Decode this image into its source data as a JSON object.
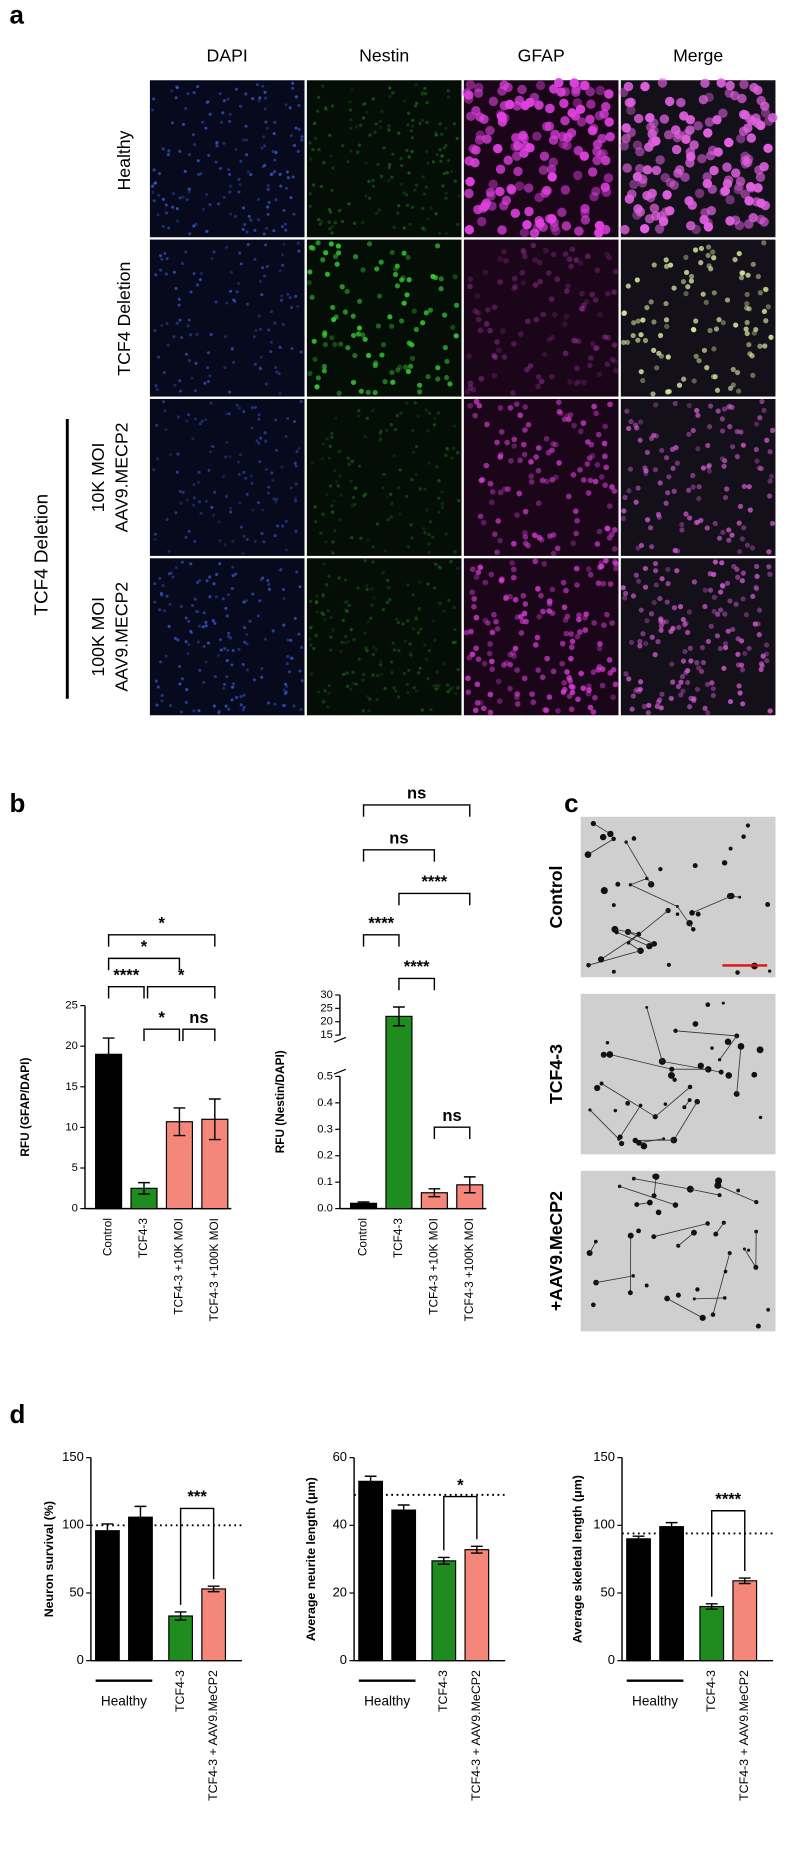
{
  "figure": {
    "panel_a": {
      "label": "a",
      "columns": [
        "DAPI",
        "Nestin",
        "GFAP",
        "Merge"
      ],
      "rows": [
        "Healthy",
        "TCF4 Deletion",
        [
          "10K MOI",
          "AAV9.MECP2"
        ],
        [
          "100K MOI",
          "AAV9.MECP2"
        ]
      ],
      "group_label": "TCF4 Deletion"
    },
    "panel_b_label": "b",
    "panel_c": {
      "label": "c",
      "rows": [
        "Control",
        "TCF4-3",
        "+AAV9.MeCP2"
      ]
    },
    "panel_d_label": "d"
  },
  "chart_data": [
    {
      "type": "bar",
      "y_label": "RFU (GFAP/DAPI)",
      "categories": [
        "Control",
        "TCF4-3",
        "TCF4-3 +10K MOI",
        "TCF4-3 +100K MOI"
      ],
      "values": [
        19,
        2.5,
        10.7,
        11
      ],
      "errors": [
        2,
        0.7,
        1.7,
        2.5
      ],
      "colors": [
        "#000000",
        "#1e8c1e",
        "#f4877a",
        "#f4877a"
      ],
      "ylim": [
        0,
        25
      ],
      "yticks": [
        0,
        5,
        10,
        15,
        20,
        25
      ],
      "annotations": [
        "*",
        "*",
        "****",
        "*",
        "*",
        "ns"
      ]
    },
    {
      "type": "bar",
      "y_label": "RFU (Nestin/DAPI)",
      "categories": [
        "Control",
        "TCF4-3",
        "TCF4-3 +10K MOI",
        "TCF4-3 +100K MOI"
      ],
      "values": [
        0.02,
        22,
        0.06,
        0.09
      ],
      "errors": [
        0.005,
        3.5,
        0.015,
        0.03
      ],
      "colors": [
        "#000000",
        "#1e8c1e",
        "#f4877a",
        "#f4877a"
      ],
      "ylim": [
        0,
        0.5
      ],
      "yticks": [
        {
          "value": 0,
          "label": "0.0"
        },
        0.1,
        0.2,
        0.3,
        0.4,
        0.5
      ],
      "y_break": {
        "ylim": [
          15,
          30
        ],
        "yticks": [
          15,
          20,
          25,
          30
        ]
      },
      "annotations": [
        "ns",
        "ns",
        "****",
        "****",
        "****",
        "ns"
      ]
    },
    {
      "type": "bar",
      "y_label": "Neuron survival (%)",
      "categories": [
        null,
        null,
        "TCF4-3",
        "TCF4-3 + AAV9.MeCP2"
      ],
      "group_label": "Healthy",
      "values": [
        96,
        106,
        33,
        53
      ],
      "errors": [
        5,
        8,
        3,
        2
      ],
      "colors": [
        "#000000",
        "#000000",
        "#1e8c1e",
        "#f4877a"
      ],
      "ylim": [
        0,
        150
      ],
      "yticks": [
        0,
        50,
        100,
        150
      ],
      "reference_line": 100,
      "annotations": [
        "***"
      ]
    },
    {
      "type": "bar",
      "y_label": "Average neurite length (μm)",
      "categories": [
        null,
        null,
        "TCF4-3",
        "TCF4-3 + AAV9.MeCP2"
      ],
      "group_label": "Healthy",
      "values": [
        53,
        44.5,
        29.5,
        32.8
      ],
      "errors": [
        1.5,
        1.5,
        1,
        1
      ],
      "colors": [
        "#000000",
        "#000000",
        "#1e8c1e",
        "#f4877a"
      ],
      "ylim": [
        0,
        60
      ],
      "yticks": [
        0,
        20,
        40,
        60
      ],
      "reference_line": 49,
      "annotations": [
        "*"
      ]
    },
    {
      "type": "bar",
      "y_label": "Average skeletal length (μm)",
      "categories": [
        null,
        null,
        "TCF4-3",
        "TCF4-3 + AAV9.MeCP2"
      ],
      "group_label": "Healthy",
      "values": [
        90,
        99,
        40,
        59
      ],
      "errors": [
        2,
        3,
        2,
        2
      ],
      "colors": [
        "#000000",
        "#000000",
        "#1e8c1e",
        "#f4877a"
      ],
      "ylim": [
        0,
        150
      ],
      "yticks": [
        0,
        50,
        100,
        150
      ],
      "reference_line": 94,
      "annotations": [
        "****"
      ]
    }
  ]
}
